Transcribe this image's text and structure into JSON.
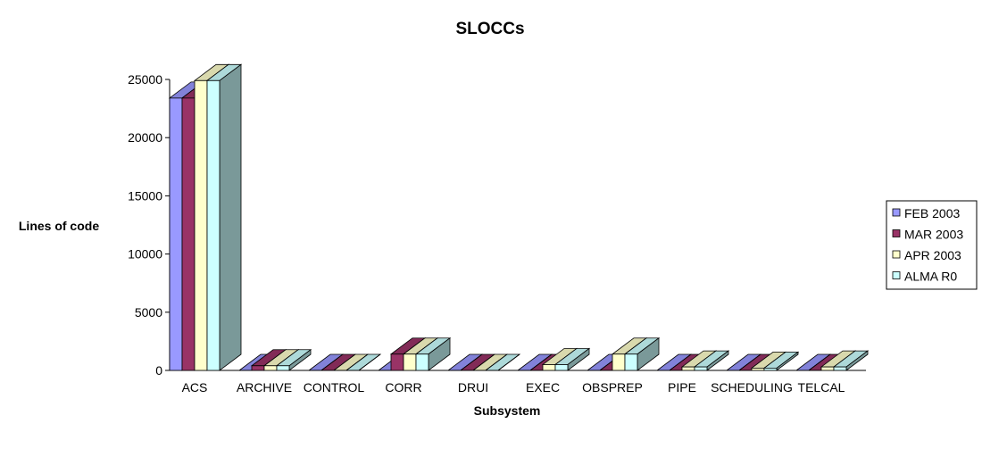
{
  "chart_data": {
    "type": "bar",
    "title": "SLOCCs",
    "xlabel": "Subsystem",
    "ylabel": "Lines of code",
    "ylim": [
      0,
      25000
    ],
    "yticks": [
      "0",
      "5000",
      "10000",
      "15000",
      "20000",
      "25000"
    ],
    "grid": false,
    "legend_position": "right",
    "categories": [
      "ACS",
      "ARCHIVE",
      "CONTROL",
      "CORR",
      "DRUI",
      "EXEC",
      "OBSPREP",
      "PIPE",
      "SCHEDULING",
      "TELCAL"
    ],
    "series": [
      {
        "name": "FEB 2003",
        "color": "#9999ff",
        "values": [
          23400,
          0,
          0,
          0,
          0,
          0,
          0,
          0,
          0,
          0
        ]
      },
      {
        "name": "MAR 2003",
        "color": "#993366",
        "values": [
          23400,
          400,
          0,
          1400,
          0,
          0,
          0,
          0,
          0,
          0
        ]
      },
      {
        "name": "APR 2003",
        "color": "#ffffcc",
        "values": [
          24900,
          400,
          0,
          1400,
          0,
          500,
          1400,
          300,
          200,
          300
        ]
      },
      {
        "name": "ALMA R0",
        "color": "#ccffff",
        "values": [
          24900,
          400,
          0,
          1400,
          0,
          500,
          1400,
          300,
          200,
          300
        ]
      }
    ]
  }
}
